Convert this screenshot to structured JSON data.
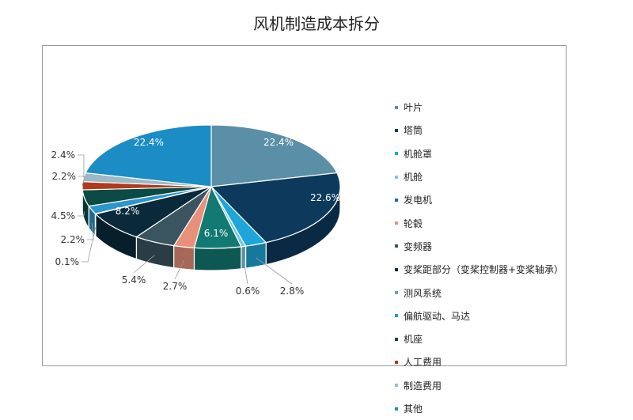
{
  "chart_data": {
    "type": "pie",
    "title": "风机制造成本拆分",
    "legend_position": "right",
    "slices": [
      {
        "label": "叶片",
        "value": 22.4,
        "value_label": "22.4%",
        "color": "#5b8fa8"
      },
      {
        "label": "塔筒",
        "value": 22.6,
        "value_label": "22.6%",
        "color": "#0d3a5c"
      },
      {
        "label": "机舱罩",
        "value": 2.8,
        "value_label": "2.8%",
        "color": "#1ea6da"
      },
      {
        "label": "机舱",
        "value": 0.6,
        "value_label": "0.6%",
        "color": "#7ccbe6"
      },
      {
        "label": "发电机",
        "value": 6.1,
        "value_label": "6.1%",
        "color": "#127a72"
      },
      {
        "label": "轮毂",
        "value": 2.7,
        "value_label": "2.7%",
        "color": "#e8907a"
      },
      {
        "label": "变频器",
        "value": 5.4,
        "value_label": "5.4%",
        "color": "#3a5560"
      },
      {
        "label": "变桨距部分（变桨控制器+变桨轴承）",
        "value": 8.2,
        "value_label": "8.2%",
        "color": "#0a2a3c"
      },
      {
        "label": "测风系统",
        "value": 0.1,
        "value_label": "0.1%",
        "color": "#6aa3b5"
      },
      {
        "label": "偏航驱动、马达",
        "value": 2.2,
        "value_label": "2.2%",
        "color": "#2b95cc"
      },
      {
        "label": "机座",
        "value": 4.5,
        "value_label": "4.5%",
        "color": "#0b4a45"
      },
      {
        "label": "人工费用",
        "value": 2.2,
        "value_label": "2.2%",
        "color": "#b03a1c"
      },
      {
        "label": "制造费用",
        "value": 2.4,
        "value_label": "2.4%",
        "color": "#9cb9c8"
      },
      {
        "label": "其他",
        "value": 22.4,
        "value_label": "22.4%",
        "color": "#1b8cc4"
      }
    ]
  }
}
